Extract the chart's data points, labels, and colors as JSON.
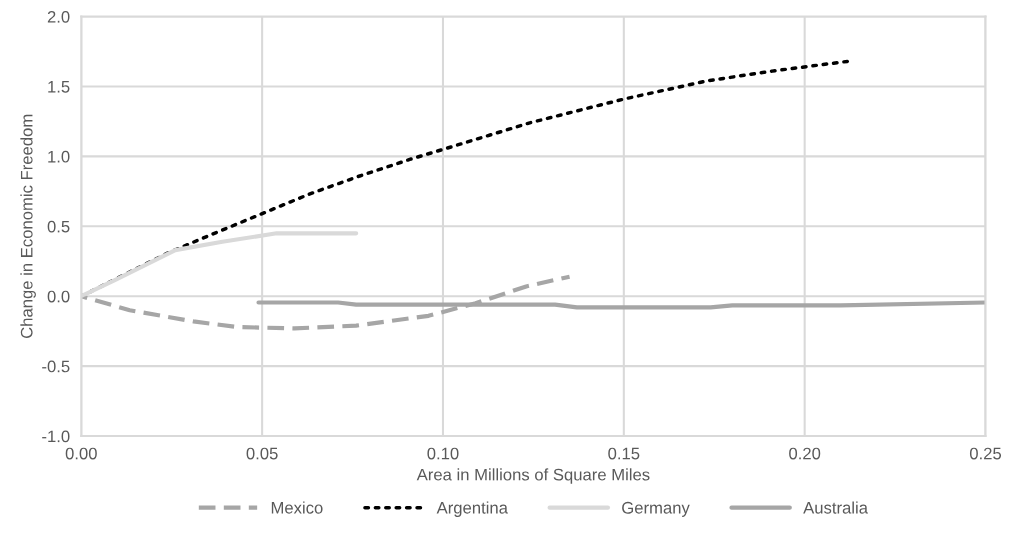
{
  "chart_data": {
    "type": "line",
    "xlabel": "Area in Millions of Square Miles",
    "ylabel": "Change in Economic Freedom",
    "series": [
      {
        "name": "Mexico",
        "color": "#a6a6a6",
        "line_style": "dashed",
        "x": [
          0,
          0.0134,
          0.031,
          0.043,
          0.059,
          0.076,
          0.096,
          0.109,
          0.123,
          0.135
        ],
        "values": [
          0,
          -0.1,
          -0.18,
          -0.22,
          -0.23,
          -0.21,
          -0.14,
          -0.05,
          0.07,
          0.14
        ]
      },
      {
        "name": "Argentina",
        "color": "#000000",
        "line_style": "dotted",
        "x": [
          0,
          0.024,
          0.035,
          0.049,
          0.063,
          0.077,
          0.091,
          0.1,
          0.124,
          0.15,
          0.173,
          0.191,
          0.212
        ],
        "values": [
          0,
          0.31,
          0.43,
          0.58,
          0.73,
          0.86,
          0.98,
          1.05,
          1.24,
          1.41,
          1.54,
          1.61,
          1.68
        ]
      },
      {
        "name": "Germany",
        "color": "#d9d9d9",
        "line_style": "solid",
        "x": [
          0,
          0.0097,
          0.026,
          0.039,
          0.054,
          0.076
        ],
        "values": [
          0,
          0.12,
          0.33,
          0.39,
          0.45,
          0.45
        ]
      },
      {
        "name": "Australia",
        "color": "#a6a6a6",
        "line_style": "solid",
        "x": [
          0.049,
          0.071,
          0.076,
          0.131,
          0.137,
          0.174,
          0.18,
          0.21,
          0.25
        ],
        "values": [
          -0.045,
          -0.045,
          -0.06,
          -0.06,
          -0.08,
          -0.08,
          -0.065,
          -0.065,
          -0.045
        ]
      }
    ],
    "xlim": [
      0,
      0.25
    ],
    "xticks": [
      {
        "value": 0,
        "label": "0.00"
      },
      {
        "value": 0.05,
        "label": "0.05"
      },
      {
        "value": 0.1,
        "label": "0.10"
      },
      {
        "value": 0.15,
        "label": "0.15"
      },
      {
        "value": 0.2,
        "label": "0.20"
      },
      {
        "value": 0.25,
        "label": "0.25"
      }
    ],
    "ylim": [
      -1,
      2
    ],
    "yticks": [
      {
        "value": -1,
        "label": "-1.0"
      },
      {
        "value": -0.5,
        "label": "-0.5"
      },
      {
        "value": 0,
        "label": "0.0"
      },
      {
        "value": 0.5,
        "label": "0.5"
      },
      {
        "value": 1,
        "label": "1.0"
      },
      {
        "value": 1.5,
        "label": "1.5"
      },
      {
        "value": 2,
        "label": "2.0"
      }
    ],
    "grid": true,
    "legend": "bottom",
    "marker": "none"
  }
}
